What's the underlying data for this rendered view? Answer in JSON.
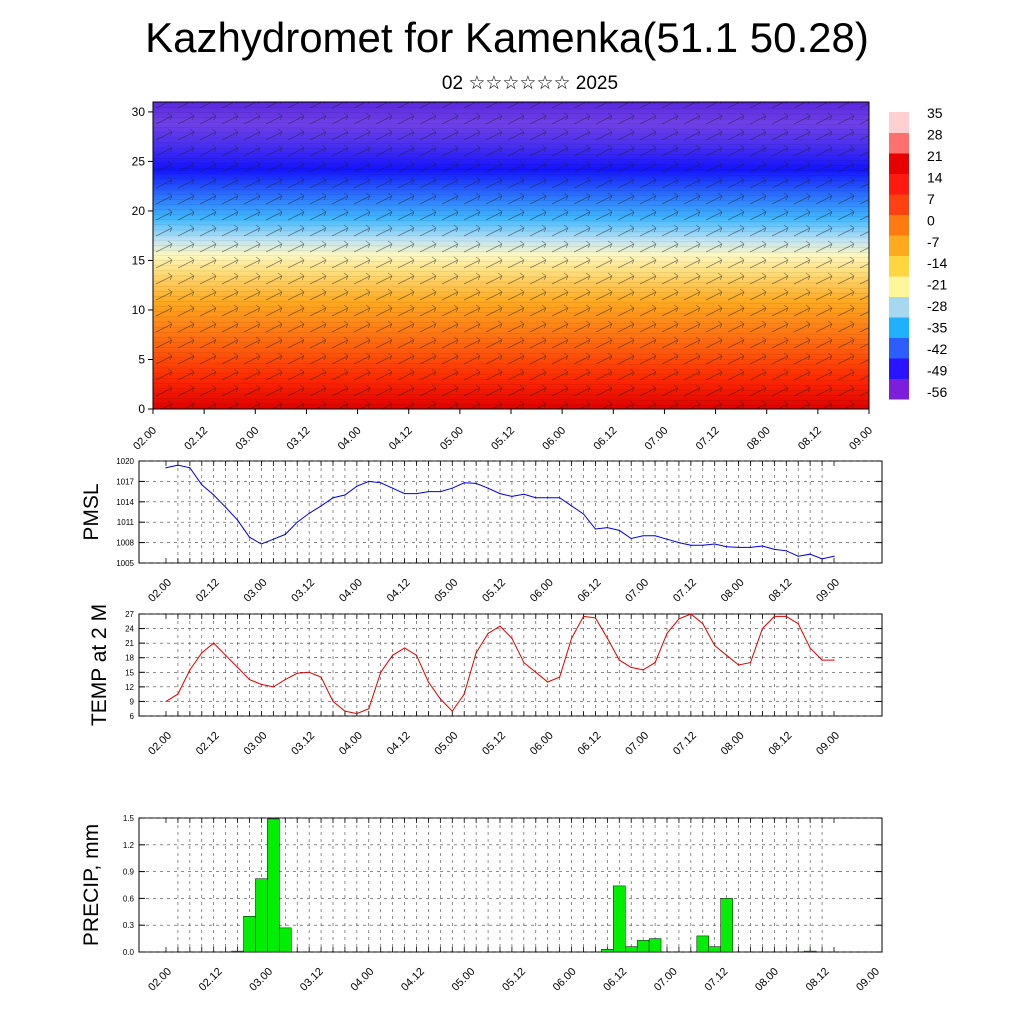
{
  "title": "Kazhydromet for Kamenka(51.1 50.28)",
  "subtitle": "02 ☆☆☆☆☆☆ 2025",
  "chart_data": [
    {
      "type": "heatmap",
      "name": "vertical-temperature-wind",
      "x_ticks": [
        "02.00",
        "02.12",
        "03.00",
        "03.12",
        "04.00",
        "04.12",
        "05.00",
        "05.12",
        "06.00",
        "06.12",
        "07.00",
        "07.12",
        "08.00",
        "08.12",
        "09.00"
      ],
      "y_ticks": [
        "0",
        "5",
        "10",
        "15",
        "20",
        "25",
        "30"
      ],
      "ylim": [
        0,
        31
      ],
      "colorbar": {
        "labels": [
          "35",
          "28",
          "21",
          "14",
          "7",
          "0",
          "-7",
          "-14",
          "-21",
          "-28",
          "-35",
          "-42",
          "-49",
          "-56"
        ],
        "colors": [
          "#7c1fdc",
          "#2a14ff",
          "#2d5cff",
          "#1fb0ff",
          "#a8d8f0",
          "#fff59a",
          "#ffd640",
          "#ffaa1e",
          "#ff7a10",
          "#ff4010",
          "#ff1a10",
          "#e80000",
          "#ff7070",
          "#ffd0d0"
        ]
      }
    },
    {
      "type": "line",
      "name": "pmsl",
      "ylabel": "PMSL",
      "ylim": [
        1005,
        1020
      ],
      "y_ticks": [
        "1005",
        "1008",
        "1011",
        "1014",
        "1017",
        "1020"
      ],
      "x_ticks": [
        "02.00",
        "02.12",
        "03.00",
        "03.12",
        "04.00",
        "04.12",
        "05.00",
        "05.12",
        "06.00",
        "06.12",
        "07.00",
        "07.12",
        "08.00",
        "08.12",
        "09.00"
      ],
      "color": "#0000dd",
      "values": [
        1019.0,
        1019.4,
        1019.0,
        1016.5,
        1015.0,
        1013.2,
        1011.3,
        1008.8,
        1007.8,
        1008.5,
        1009.2,
        1011.0,
        1012.3,
        1013.4,
        1014.6,
        1015.0,
        1016.3,
        1017.0,
        1016.8,
        1016.0,
        1015.2,
        1015.2,
        1015.5,
        1015.5,
        1016.0,
        1016.8,
        1016.7,
        1016.0,
        1015.2,
        1014.8,
        1015.1,
        1014.6,
        1014.6,
        1014.6,
        1013.4,
        1012.2,
        1010.0,
        1010.2,
        1009.8,
        1008.6,
        1009.0,
        1009.0,
        1008.5,
        1008.0,
        1007.6,
        1007.6,
        1007.8,
        1007.4,
        1007.3,
        1007.3,
        1007.5,
        1007.0,
        1006.8,
        1006.0,
        1006.3,
        1005.6,
        1006.0
      ]
    },
    {
      "type": "line",
      "name": "temp-2m",
      "ylabel": "TEMP at 2 M",
      "ylim": [
        6,
        27
      ],
      "y_ticks": [
        "6",
        "9",
        "12",
        "15",
        "18",
        "21",
        "24",
        "27"
      ],
      "x_ticks": [
        "02.00",
        "02.12",
        "03.00",
        "03.12",
        "04.00",
        "04.12",
        "05.00",
        "05.12",
        "06.00",
        "06.12",
        "07.00",
        "07.12",
        "08.00",
        "08.12",
        "09.00"
      ],
      "color": "#dd0000",
      "values": [
        9.0,
        10.5,
        15.5,
        19.0,
        21.0,
        18.5,
        16.0,
        13.5,
        12.5,
        12.0,
        13.5,
        14.8,
        15.0,
        14.0,
        9.0,
        7.0,
        6.5,
        7.5,
        15.0,
        18.5,
        20.0,
        18.5,
        13.0,
        9.5,
        7.0,
        10.5,
        19.0,
        23.0,
        24.5,
        22.0,
        17.0,
        15.0,
        13.0,
        14.0,
        22.0,
        26.5,
        26.2,
        22.0,
        17.5,
        16.0,
        15.5,
        17.0,
        23.0,
        26.0,
        27.0,
        25.0,
        20.5,
        18.5,
        16.5,
        17.0,
        24.0,
        26.5,
        26.5,
        25.0,
        20.0,
        17.5,
        17.5
      ]
    },
    {
      "type": "bar",
      "name": "precip",
      "ylabel": "PRECIP, mm",
      "ylim": [
        0,
        1.5
      ],
      "y_ticks": [
        "0.0",
        "0.3",
        "0.6",
        "0.9",
        "1.2",
        "1.5"
      ],
      "x_ticks": [
        "02.00",
        "02.12",
        "03.00",
        "03.12",
        "04.00",
        "04.12",
        "05.00",
        "05.12",
        "06.00",
        "06.12",
        "07.00",
        "07.12",
        "08.00",
        "08.12",
        "09.00"
      ],
      "color": "#00ee00",
      "values": [
        0,
        0,
        0,
        0,
        0,
        0,
        0.01,
        0.4,
        0.82,
        1.49,
        0.27,
        0,
        0,
        0,
        0,
        0,
        0,
        0,
        0,
        0,
        0,
        0,
        0,
        0,
        0,
        0,
        0,
        0,
        0,
        0,
        0,
        0,
        0,
        0,
        0,
        0,
        0,
        0.03,
        0.74,
        0.06,
        0.13,
        0.15,
        0,
        0,
        0,
        0.18,
        0.06,
        0.6,
        0,
        0,
        0,
        0,
        0,
        0,
        0.01,
        0,
        0
      ]
    }
  ]
}
